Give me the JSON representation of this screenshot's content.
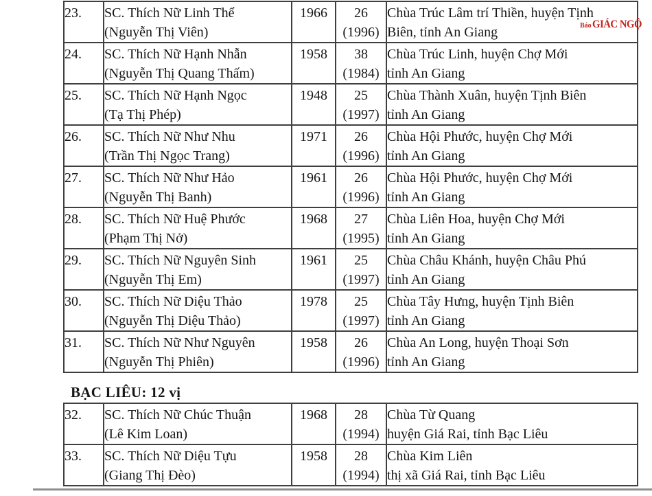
{
  "section_header": "BẠC LIÊU: 12 vị",
  "watermark": {
    "prefix": "Báo",
    "name": "GIÁC NGỘ",
    "color": "#c2231e"
  },
  "tables": [
    {
      "id": "an-giang-rows-23-31",
      "rows": [
        {
          "no": "23.",
          "name1": "SC. Thích Nữ Linh Thể",
          "name2": "(Nguyễn Thị Viên)",
          "year": "1966",
          "age1": "26",
          "age2": "(1996)",
          "loc1": "Chùa Trúc Lâm trí Thiền, huyện Tịnh",
          "loc2": "Biên, tỉnh An Giang"
        },
        {
          "no": "24.",
          "name1": "SC. Thích Nữ Hạnh Nhẫn",
          "name2": "(Nguyễn Thị Quang Thấm)",
          "year": "1958",
          "age1": "38",
          "age2": "(1984)",
          "loc1": "Chùa Trúc Linh, huyện Chợ Mới",
          "loc2": "tỉnh An Giang"
        },
        {
          "no": "25.",
          "name1": "SC. Thích Nữ Hạnh Ngọc",
          "name2": "(Tạ Thị Phép)",
          "year": "1948",
          "age1": "25",
          "age2": "(1997)",
          "loc1": "Chùa Thành Xuân, huyện Tịnh Biên",
          "loc2": "tỉnh An Giang"
        },
        {
          "no": "26.",
          "name1": "SC. Thích Nữ Như Nhu",
          "name2": "(Trần Thị Ngọc Trang)",
          "year": "1971",
          "age1": "26",
          "age2": "(1996)",
          "loc1": "Chùa Hội Phước, huyện Chợ Mới",
          "loc2": "tỉnh An Giang"
        },
        {
          "no": "27.",
          "name1": "SC. Thích Nữ Như Hảo",
          "name2": "(Nguyễn Thị Banh)",
          "year": "1961",
          "age1": "26",
          "age2": "(1996)",
          "loc1": "Chùa Hội Phước, huyện Chợ Mới",
          "loc2": "tỉnh An Giang"
        },
        {
          "no": "28.",
          "name1": "SC. Thích Nữ Huệ Phước",
          "name2": "(Phạm Thị Nở)",
          "year": "1968",
          "age1": "27",
          "age2": "(1995)",
          "loc1": "Chùa Liên Hoa, huyện Chợ Mới",
          "loc2": "tỉnh An Giang"
        },
        {
          "no": "29.",
          "name1": "SC. Thích Nữ Nguyên Sinh",
          "name2": "(Nguyễn Thị Em)",
          "year": "1961",
          "age1": "25",
          "age2": "(1997)",
          "loc1": "Chùa Châu Khánh, huyện Châu Phú",
          "loc2": "tỉnh An Giang"
        },
        {
          "no": "30.",
          "name1": "SC. Thích Nữ Diệu Thảo",
          "name2": "(Nguyễn Thị Diệu Thảo)",
          "year": "1978",
          "age1": "25",
          "age2": "(1997)",
          "loc1": "Chùa Tây Hưng, huyện Tịnh Biên",
          "loc2": "tỉnh An Giang"
        },
        {
          "no": "31.",
          "name1": "SC. Thích Nữ Như Nguyên",
          "name2": "(Nguyễn Thị Phiên)",
          "year": "1958",
          "age1": "26",
          "age2": "(1996)",
          "loc1": "Chùa An Long, huyện Thoại Sơn",
          "loc2": "tỉnh An Giang"
        }
      ]
    },
    {
      "id": "bac-lieu-rows-32-33",
      "rows": [
        {
          "no": "32.",
          "name1": "SC. Thích Nữ Chúc Thuận",
          "name2": "(Lê Kim Loan)",
          "year": "1968",
          "age1": "28",
          "age2": "(1994)",
          "loc1": "Chùa Từ Quang",
          "loc2": "huyện Giá Rai, tỉnh Bạc Liêu"
        },
        {
          "no": "33.",
          "name1": "SC. Thích Nữ Diệu Tựu",
          "name2": "(Giang Thị Đèo)",
          "year": "1958",
          "age1": "28",
          "age2": "(1994)",
          "loc1": "Chùa Kim Liên",
          "loc2": "thị xã Giá Rai, tỉnh Bạc Liêu"
        }
      ]
    }
  ]
}
